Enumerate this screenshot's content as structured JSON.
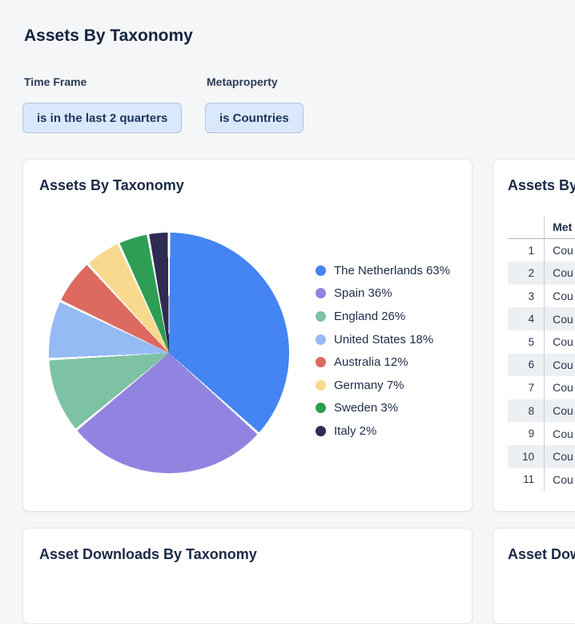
{
  "page": {
    "title": "Assets By Taxonomy",
    "background": "#f5f6f8"
  },
  "filters": [
    {
      "label": "Time Frame",
      "value": "is in the last 2 quarters"
    },
    {
      "label": "Metaproperty",
      "value": "is Countries"
    }
  ],
  "chip_style": {
    "bg": "#d9e8fb",
    "border": "#b3c4da",
    "text": "#1b355d"
  },
  "cards": {
    "pie_card": {
      "title": "Assets By Taxonomy"
    },
    "table_card": {
      "title": "Assets By",
      "column_header": "Met",
      "rows": [
        {
          "index": "1",
          "value": "Cou"
        },
        {
          "index": "2",
          "value": "Cou"
        },
        {
          "index": "3",
          "value": "Cou"
        },
        {
          "index": "4",
          "value": "Cou"
        },
        {
          "index": "5",
          "value": "Cou"
        },
        {
          "index": "6",
          "value": "Cou"
        },
        {
          "index": "7",
          "value": "Cou"
        },
        {
          "index": "8",
          "value": "Cou"
        },
        {
          "index": "9",
          "value": "Cou"
        },
        {
          "index": "10",
          "value": "Cou"
        },
        {
          "index": "11",
          "value": "Cou"
        }
      ],
      "stripe_color": "#edf0f3"
    },
    "downloads_card": {
      "title": "Asset Downloads By Taxonomy"
    },
    "downloads_card_right": {
      "title": "Asset Dow"
    }
  },
  "chart_data": {
    "type": "pie",
    "title": "Assets By Taxonomy",
    "legend_position": "right",
    "start_angle_deg": 0,
    "direction": "clockwise",
    "series": [
      {
        "label": "The Netherlands",
        "percent": 63,
        "color": "#4484f3",
        "angle_deg": 132.0
      },
      {
        "label": "Spain",
        "percent": 36,
        "color": "#9184e0",
        "angle_deg": 98.4
      },
      {
        "label": "England",
        "percent": 26,
        "color": "#7ec2a5",
        "angle_deg": 36.6
      },
      {
        "label": "United States",
        "percent": 18,
        "color": "#95bbf5",
        "angle_deg": 28.5
      },
      {
        "label": "Australia",
        "percent": 12,
        "color": "#dc6a60",
        "angle_deg": 22.0
      },
      {
        "label": "Germany",
        "percent": 7,
        "color": "#f8d98e",
        "angle_deg": 17.7
      },
      {
        "label": "Sweden",
        "percent": 3,
        "color": "#2f9e55",
        "angle_deg": 14.7
      },
      {
        "label": "Italy",
        "percent": 2,
        "color": "#2e2c52",
        "angle_deg": 10.1
      }
    ]
  }
}
